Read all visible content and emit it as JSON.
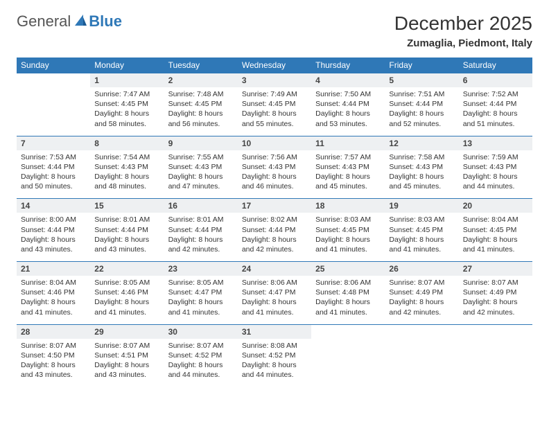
{
  "logo": {
    "text_a": "General",
    "text_b": "Blue",
    "sail_color": "#2f78b7",
    "text_color": "#555555"
  },
  "title": "December 2025",
  "location": "Zumaglia, Piedmont, Italy",
  "header_bg": "#2f78b7",
  "daynum_bg": "#eef0f2",
  "rule_color": "#2f78b7",
  "day_headers": [
    "Sunday",
    "Monday",
    "Tuesday",
    "Wednesday",
    "Thursday",
    "Friday",
    "Saturday"
  ],
  "weeks": [
    {
      "nums": [
        "",
        "1",
        "2",
        "3",
        "4",
        "5",
        "6"
      ],
      "cells": [
        null,
        {
          "sr": "7:47 AM",
          "ss": "4:45 PM",
          "dl": "8 hours and 58 minutes."
        },
        {
          "sr": "7:48 AM",
          "ss": "4:45 PM",
          "dl": "8 hours and 56 minutes."
        },
        {
          "sr": "7:49 AM",
          "ss": "4:45 PM",
          "dl": "8 hours and 55 minutes."
        },
        {
          "sr": "7:50 AM",
          "ss": "4:44 PM",
          "dl": "8 hours and 53 minutes."
        },
        {
          "sr": "7:51 AM",
          "ss": "4:44 PM",
          "dl": "8 hours and 52 minutes."
        },
        {
          "sr": "7:52 AM",
          "ss": "4:44 PM",
          "dl": "8 hours and 51 minutes."
        }
      ]
    },
    {
      "nums": [
        "7",
        "8",
        "9",
        "10",
        "11",
        "12",
        "13"
      ],
      "cells": [
        {
          "sr": "7:53 AM",
          "ss": "4:44 PM",
          "dl": "8 hours and 50 minutes."
        },
        {
          "sr": "7:54 AM",
          "ss": "4:43 PM",
          "dl": "8 hours and 48 minutes."
        },
        {
          "sr": "7:55 AM",
          "ss": "4:43 PM",
          "dl": "8 hours and 47 minutes."
        },
        {
          "sr": "7:56 AM",
          "ss": "4:43 PM",
          "dl": "8 hours and 46 minutes."
        },
        {
          "sr": "7:57 AM",
          "ss": "4:43 PM",
          "dl": "8 hours and 45 minutes."
        },
        {
          "sr": "7:58 AM",
          "ss": "4:43 PM",
          "dl": "8 hours and 45 minutes."
        },
        {
          "sr": "7:59 AM",
          "ss": "4:43 PM",
          "dl": "8 hours and 44 minutes."
        }
      ]
    },
    {
      "nums": [
        "14",
        "15",
        "16",
        "17",
        "18",
        "19",
        "20"
      ],
      "cells": [
        {
          "sr": "8:00 AM",
          "ss": "4:44 PM",
          "dl": "8 hours and 43 minutes."
        },
        {
          "sr": "8:01 AM",
          "ss": "4:44 PM",
          "dl": "8 hours and 43 minutes."
        },
        {
          "sr": "8:01 AM",
          "ss": "4:44 PM",
          "dl": "8 hours and 42 minutes."
        },
        {
          "sr": "8:02 AM",
          "ss": "4:44 PM",
          "dl": "8 hours and 42 minutes."
        },
        {
          "sr": "8:03 AM",
          "ss": "4:45 PM",
          "dl": "8 hours and 41 minutes."
        },
        {
          "sr": "8:03 AM",
          "ss": "4:45 PM",
          "dl": "8 hours and 41 minutes."
        },
        {
          "sr": "8:04 AM",
          "ss": "4:45 PM",
          "dl": "8 hours and 41 minutes."
        }
      ]
    },
    {
      "nums": [
        "21",
        "22",
        "23",
        "24",
        "25",
        "26",
        "27"
      ],
      "cells": [
        {
          "sr": "8:04 AM",
          "ss": "4:46 PM",
          "dl": "8 hours and 41 minutes."
        },
        {
          "sr": "8:05 AM",
          "ss": "4:46 PM",
          "dl": "8 hours and 41 minutes."
        },
        {
          "sr": "8:05 AM",
          "ss": "4:47 PM",
          "dl": "8 hours and 41 minutes."
        },
        {
          "sr": "8:06 AM",
          "ss": "4:47 PM",
          "dl": "8 hours and 41 minutes."
        },
        {
          "sr": "8:06 AM",
          "ss": "4:48 PM",
          "dl": "8 hours and 41 minutes."
        },
        {
          "sr": "8:07 AM",
          "ss": "4:49 PM",
          "dl": "8 hours and 42 minutes."
        },
        {
          "sr": "8:07 AM",
          "ss": "4:49 PM",
          "dl": "8 hours and 42 minutes."
        }
      ]
    },
    {
      "nums": [
        "28",
        "29",
        "30",
        "31",
        "",
        "",
        ""
      ],
      "cells": [
        {
          "sr": "8:07 AM",
          "ss": "4:50 PM",
          "dl": "8 hours and 43 minutes."
        },
        {
          "sr": "8:07 AM",
          "ss": "4:51 PM",
          "dl": "8 hours and 43 minutes."
        },
        {
          "sr": "8:07 AM",
          "ss": "4:52 PM",
          "dl": "8 hours and 44 minutes."
        },
        {
          "sr": "8:08 AM",
          "ss": "4:52 PM",
          "dl": "8 hours and 44 minutes."
        },
        null,
        null,
        null
      ]
    }
  ],
  "labels": {
    "sunrise": "Sunrise:",
    "sunset": "Sunset:",
    "daylight": "Daylight:"
  }
}
